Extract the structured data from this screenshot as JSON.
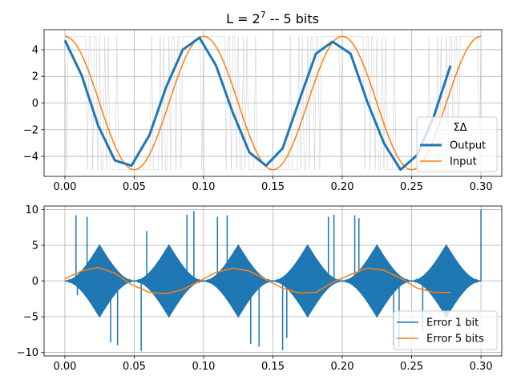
{
  "figure_title": "L = 2",
  "figure_title_sup": "7",
  "figure_title_rest": " -- 5 bits",
  "colors": {
    "blue": "#1f77b4",
    "orange": "#ff7f0e",
    "grid": "#b0b0b0",
    "noise": "#c8c8c8"
  },
  "chart_data": [
    {
      "type": "line",
      "title": "L = 2^7 -- 5 bits",
      "xlim": [
        -0.015,
        0.315
      ],
      "ylim": [
        -5.5,
        5.5
      ],
      "xticks": [
        0.0,
        0.05,
        0.1,
        0.15,
        0.2,
        0.25,
        0.3
      ],
      "xtick_labels": [
        "0.00",
        "0.05",
        "0.10",
        "0.15",
        "0.20",
        "0.25",
        "0.30"
      ],
      "yticks": [
        4,
        2,
        0,
        -2,
        -4
      ],
      "ytick_labels": [
        "4",
        "2",
        "0",
        "−2",
        "−4"
      ],
      "grid": true,
      "legend": {
        "title": "ΣΔ",
        "placement": "lower right",
        "entries": [
          "Output",
          "Input"
        ]
      },
      "background_signal": {
        "description": "1-bit sigma-delta bitstream (gray, toggling ±5)",
        "amplitude": 5,
        "n": 240
      },
      "series": [
        {
          "name": "Output",
          "x": [
            0.0,
            0.012,
            0.024,
            0.036,
            0.048,
            0.061,
            0.073,
            0.085,
            0.097,
            0.109,
            0.121,
            0.133,
            0.145,
            0.157,
            0.169,
            0.181,
            0.193,
            0.206,
            0.218,
            0.23,
            0.242,
            0.254,
            0.266,
            0.278
          ],
          "y": [
            4.7,
            2.1,
            -1.7,
            -4.3,
            -4.7,
            -2.4,
            1.2,
            4.0,
            4.9,
            2.8,
            -0.7,
            -3.7,
            -4.7,
            -3.4,
            0.2,
            3.7,
            4.6,
            3.7,
            0.1,
            -3.0,
            -5.0,
            -3.9,
            -1.0,
            2.8
          ]
        },
        {
          "name": "Input",
          "function": "5*cos(2*pi*10*t)",
          "x_range": [
            0.0,
            0.3
          ]
        }
      ]
    },
    {
      "type": "line",
      "xlim": [
        -0.015,
        0.315
      ],
      "ylim": [
        -10.5,
        10.5
      ],
      "xticks": [
        0.0,
        0.05,
        0.1,
        0.15,
        0.2,
        0.25,
        0.3
      ],
      "xtick_labels": [
        "0.00",
        "0.05",
        "0.10",
        "0.15",
        "0.20",
        "0.25",
        "0.30"
      ],
      "yticks": [
        10,
        5,
        0,
        -5,
        -10
      ],
      "ytick_labels": [
        "10",
        "5",
        "0",
        "−5",
        "−10"
      ],
      "grid": true,
      "legend": {
        "placement": "lower right",
        "entries": [
          "Error 1 bit",
          "Error 5 bits"
        ]
      },
      "series": [
        {
          "name": "Error 1 bit",
          "function": "bitstream - 5*cos(2*pi*10*t), oscillating between +/-(5 - 5|cos(2*pi*10*t)|) with spikes to about +/-10",
          "x_range": [
            0.0,
            0.3
          ]
        },
        {
          "name": "Error 5 bits",
          "x": [
            0.0,
            0.012,
            0.024,
            0.036,
            0.048,
            0.061,
            0.073,
            0.085,
            0.097,
            0.109,
            0.121,
            0.133,
            0.145,
            0.157,
            0.169,
            0.181,
            0.193,
            0.206,
            0.218,
            0.23,
            0.242,
            0.254,
            0.266,
            0.278
          ],
          "y": [
            0.3,
            1.4,
            1.9,
            1.1,
            -0.5,
            -1.6,
            -1.8,
            -1.2,
            0.0,
            1.2,
            1.8,
            1.4,
            0.2,
            -1.0,
            -1.7,
            -1.6,
            -0.2,
            0.9,
            1.8,
            1.5,
            0.4,
            -1.0,
            -1.6,
            -1.6
          ]
        }
      ]
    }
  ]
}
